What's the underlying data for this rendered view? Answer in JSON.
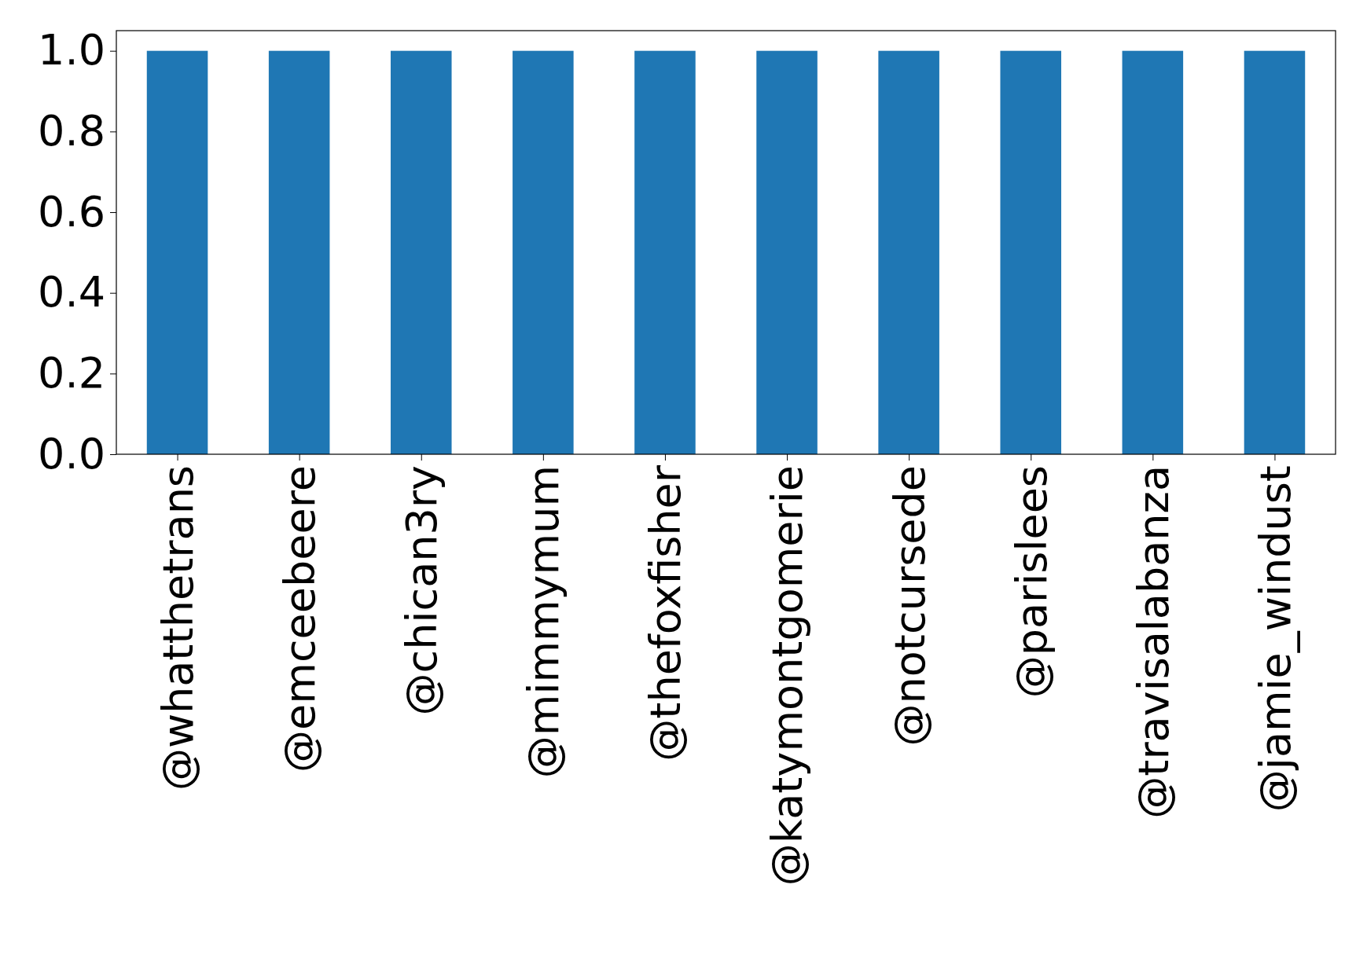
{
  "chart_data": {
    "type": "bar",
    "categories": [
      "@whatthetrans",
      "@emceebeere",
      "@chican3ry",
      "@mimmymum",
      "@thefoxfisher",
      "@katymontgomerie",
      "@notcursede",
      "@parislees",
      "@travisalabanza",
      "@jamie_windust"
    ],
    "values": [
      1,
      1,
      1,
      1,
      1,
      1,
      1,
      1,
      1,
      1
    ],
    "color": "#1f77b4",
    "ylim": [
      0,
      1.05
    ],
    "yticks": [
      {
        "value": 0,
        "label": "0.0"
      },
      {
        "value": 0.2,
        "label": "0.2"
      },
      {
        "value": 0.4,
        "label": "0.4"
      },
      {
        "value": 0.6,
        "label": "0.6"
      },
      {
        "value": 0.8,
        "label": "0.8"
      },
      {
        "value": 1,
        "label": "1.0"
      }
    ]
  }
}
